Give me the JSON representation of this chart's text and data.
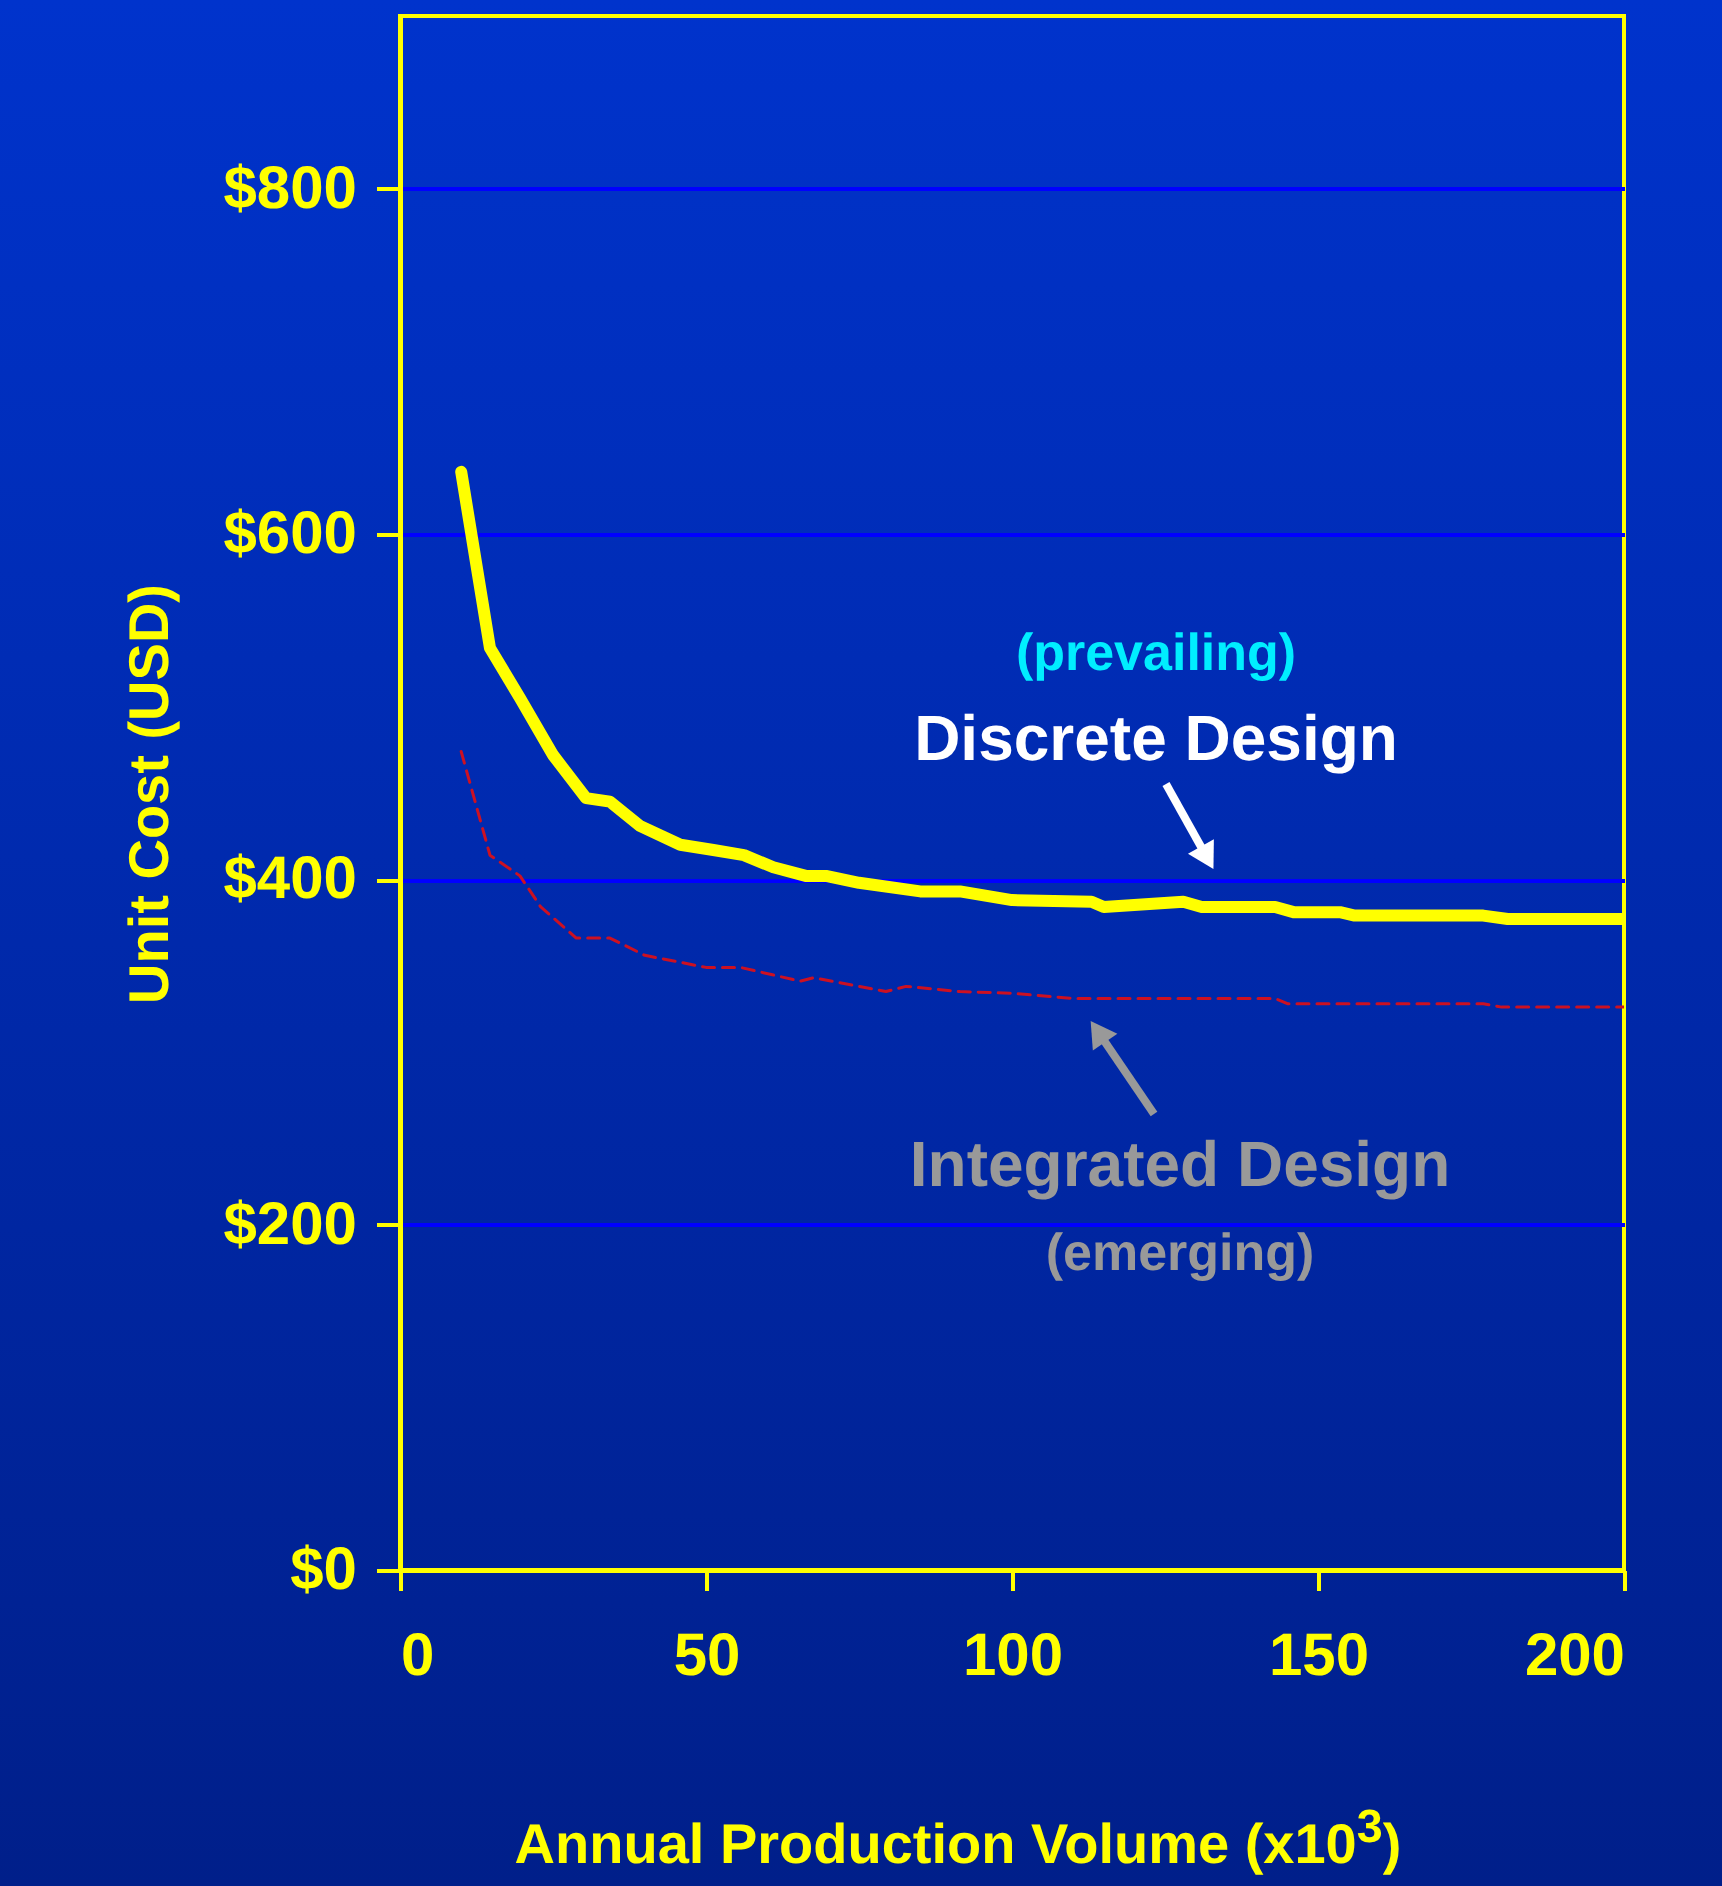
{
  "chart_data": {
    "type": "line",
    "xlabel": "Annual Production Volume (x10$^{3}$)",
    "ylabel": "Unit Cost (USD)",
    "xlim": [
      0,
      200
    ],
    "xticks": [
      0,
      50,
      100,
      150,
      200
    ],
    "ylim": [
      0,
      900
    ],
    "yticks": [
      {
        "value": 0,
        "label": "$0"
      },
      {
        "value": 200,
        "label": "$200"
      },
      {
        "value": 400,
        "label": "$400"
      },
      {
        "value": 600,
        "label": "$600"
      },
      {
        "value": 800,
        "label": "$800"
      }
    ],
    "grid": "y",
    "marker": "none",
    "series": [
      {
        "color": "#ffff00",
        "line_style": "solid",
        "x": [
          10,
          14.7,
          19.6,
          25,
          30.4,
          34.3,
          39.2,
          45.8,
          51.2,
          56.2,
          61,
          66.3,
          69.6,
          75,
          85,
          91.5,
          100,
          113,
          115,
          128,
          131,
          143,
          146,
          153.6,
          156,
          177,
          181,
          200
        ],
        "values": [
          636,
          534,
          505,
          472,
          447,
          445,
          431,
          420,
          417,
          414,
          407,
          402,
          402,
          398,
          393,
          393,
          388,
          387,
          384,
          387,
          384,
          384,
          381,
          381,
          379,
          379,
          377,
          377
        ]
      },
      {
        "color": "#cc1122",
        "line_style": "dashed",
        "x": [
          10,
          14.7,
          19.6,
          23,
          28.8,
          34.3,
          40,
          50,
          55.6,
          65.4,
          67.6,
          79.4,
          82.7,
          91.5,
          100,
          110,
          143,
          145,
          177,
          180,
          200
        ],
        "values": [
          474,
          414,
          402,
          384,
          366,
          366,
          356,
          349,
          349,
          341,
          343,
          335,
          338,
          335,
          334,
          331,
          331,
          328,
          328,
          326,
          326
        ]
      }
    ],
    "annotations": [
      "Discrete Design",
      "(prevailing)",
      "Integrated Design",
      "(emerging)"
    ]
  }
}
